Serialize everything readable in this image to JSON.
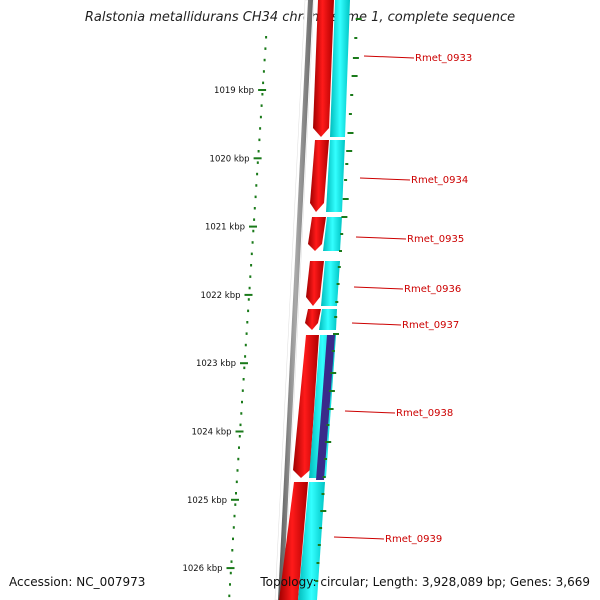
{
  "title": "Ralstonia metallidurans CH34 chromosome 1, complete sequence",
  "footer": {
    "accession": "Accession: NC_007973",
    "summary": "Topology: circular; Length: 3,928,089 bp; Genes: 3,669"
  },
  "colors": {
    "forward_gene": "#ee0000",
    "reverse_strand": "#00e5e5",
    "reverse_gene": "#3a2a8a",
    "backbone": "#888888",
    "scale_ticks": "#1a7a1a",
    "gene_label": "#cc0000",
    "label_leader": "#cc0000"
  },
  "scale": {
    "unit": "kbp",
    "ticks": [
      {
        "label": "1019 kbp",
        "kbp": 1019
      },
      {
        "label": "1020 kbp",
        "kbp": 1020
      },
      {
        "label": "1021 kbp",
        "kbp": 1021
      },
      {
        "label": "1022 kbp",
        "kbp": 1022
      },
      {
        "label": "1023 kbp",
        "kbp": 1023
      },
      {
        "label": "1024 kbp",
        "kbp": 1024
      },
      {
        "label": "1025 kbp",
        "kbp": 1025
      },
      {
        "label": "1026 kbp",
        "kbp": 1026
      }
    ]
  },
  "genes": [
    {
      "label": "Rmet_0933",
      "strand": "forward"
    },
    {
      "label": "Rmet_0934",
      "strand": "forward"
    },
    {
      "label": "Rmet_0935",
      "strand": "forward"
    },
    {
      "label": "Rmet_0936",
      "strand": "forward"
    },
    {
      "label": "Rmet_0937",
      "strand": "forward"
    },
    {
      "label": "Rmet_0938",
      "strand": "reverse"
    },
    {
      "label": "Rmet_0939",
      "strand": "forward"
    }
  ]
}
